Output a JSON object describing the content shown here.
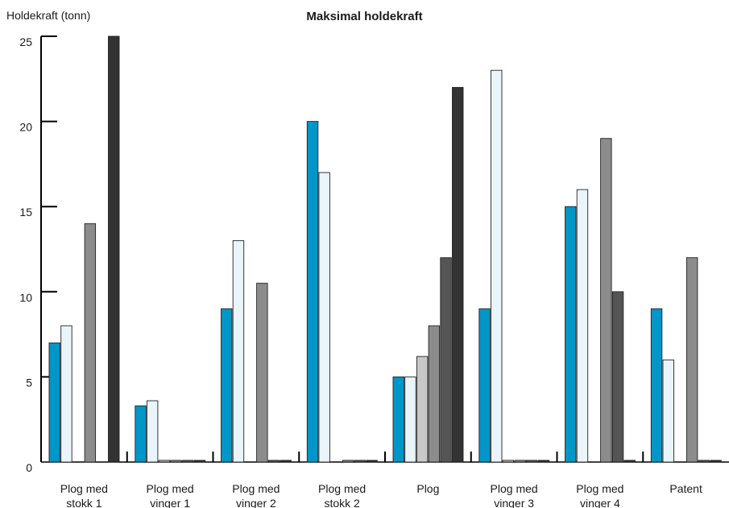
{
  "chart_data": {
    "type": "bar",
    "title": "Maksimal holdekraft",
    "ylabel": "Holdekraft (tonn)",
    "xlabel": "",
    "ylim": [
      0,
      25
    ],
    "yticks": [
      0,
      5,
      10,
      15,
      20,
      25
    ],
    "grid": false,
    "categories": [
      "Plog med stokk 1",
      "Plog med vinger 1",
      "Plog med vinger 2",
      "Plog med stokk 2",
      "Plog",
      "Plog med vinger 3",
      "Plog med vinger 4",
      "Patent"
    ],
    "series": [
      {
        "color": "#0096c8",
        "values": [
          7,
          3.3,
          9,
          20,
          5,
          9,
          15,
          9
        ]
      },
      {
        "color": "#eaf4fb",
        "values": [
          8,
          3.6,
          13,
          17,
          5,
          23,
          16,
          6
        ]
      },
      {
        "color": "#c8c8c8",
        "values": [
          0,
          0.1,
          0,
          0,
          6.2,
          0.1,
          0,
          0
        ]
      },
      {
        "color": "#8c8c8c",
        "values": [
          14,
          0.1,
          10.5,
          0.1,
          8,
          0.1,
          19,
          12
        ]
      },
      {
        "color": "#555555",
        "values": [
          0,
          0.1,
          0.1,
          0.1,
          12,
          0.1,
          10,
          0.1
        ]
      },
      {
        "color": "#333333",
        "values": [
          25,
          0.1,
          0.1,
          0.1,
          22,
          0.1,
          0.1,
          0.1
        ]
      }
    ]
  }
}
